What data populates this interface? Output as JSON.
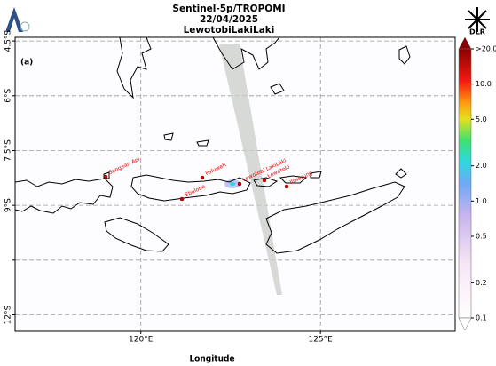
{
  "header": {
    "title_lines": [
      "Sentinel-5p/TROPOMI",
      "22/04/2025",
      "LewotobiLakiLaki"
    ],
    "logo_text": "DLR"
  },
  "map": {
    "panel_label": "(a)",
    "x_label": "Longitude",
    "xlim": [
      116.5,
      128.75
    ],
    "ylim": [
      -12.45,
      -4.4
    ],
    "xticks": [
      {
        "value": 120,
        "label": "120°E"
      },
      {
        "value": 125,
        "label": "125°E"
      }
    ],
    "yticks": [
      {
        "value": -4.5,
        "label": "4.5°S"
      },
      {
        "value": -6,
        "label": "6°S"
      },
      {
        "value": -7.5,
        "label": "7.5°S"
      },
      {
        "value": -9,
        "label": "9°S"
      },
      {
        "value": -10.5,
        "label": null
      },
      {
        "value": -12,
        "label": "12°S"
      }
    ],
    "volcanoes": [
      "Sangean Api",
      "Paluweh",
      "Ebulobo",
      "Lewotobi LakiLaki",
      "Lewotolo",
      "Iliwerung"
    ]
  },
  "colorbar": {
    "scale": "log",
    "lim": [
      0.1,
      20
    ],
    "ticks": [
      {
        "value": 0.1,
        "label": "0.1"
      },
      {
        "value": 0.2,
        "label": "0.2"
      },
      {
        "value": 0.5,
        "label": "0.5"
      },
      {
        "value": 1,
        "label": "1.0"
      },
      {
        "value": 2,
        "label": "2.0"
      },
      {
        "value": 5,
        "label": "5.0"
      },
      {
        "value": 10,
        "label": "10.0"
      },
      {
        "value": 20,
        "label": ">20.0"
      }
    ]
  }
}
